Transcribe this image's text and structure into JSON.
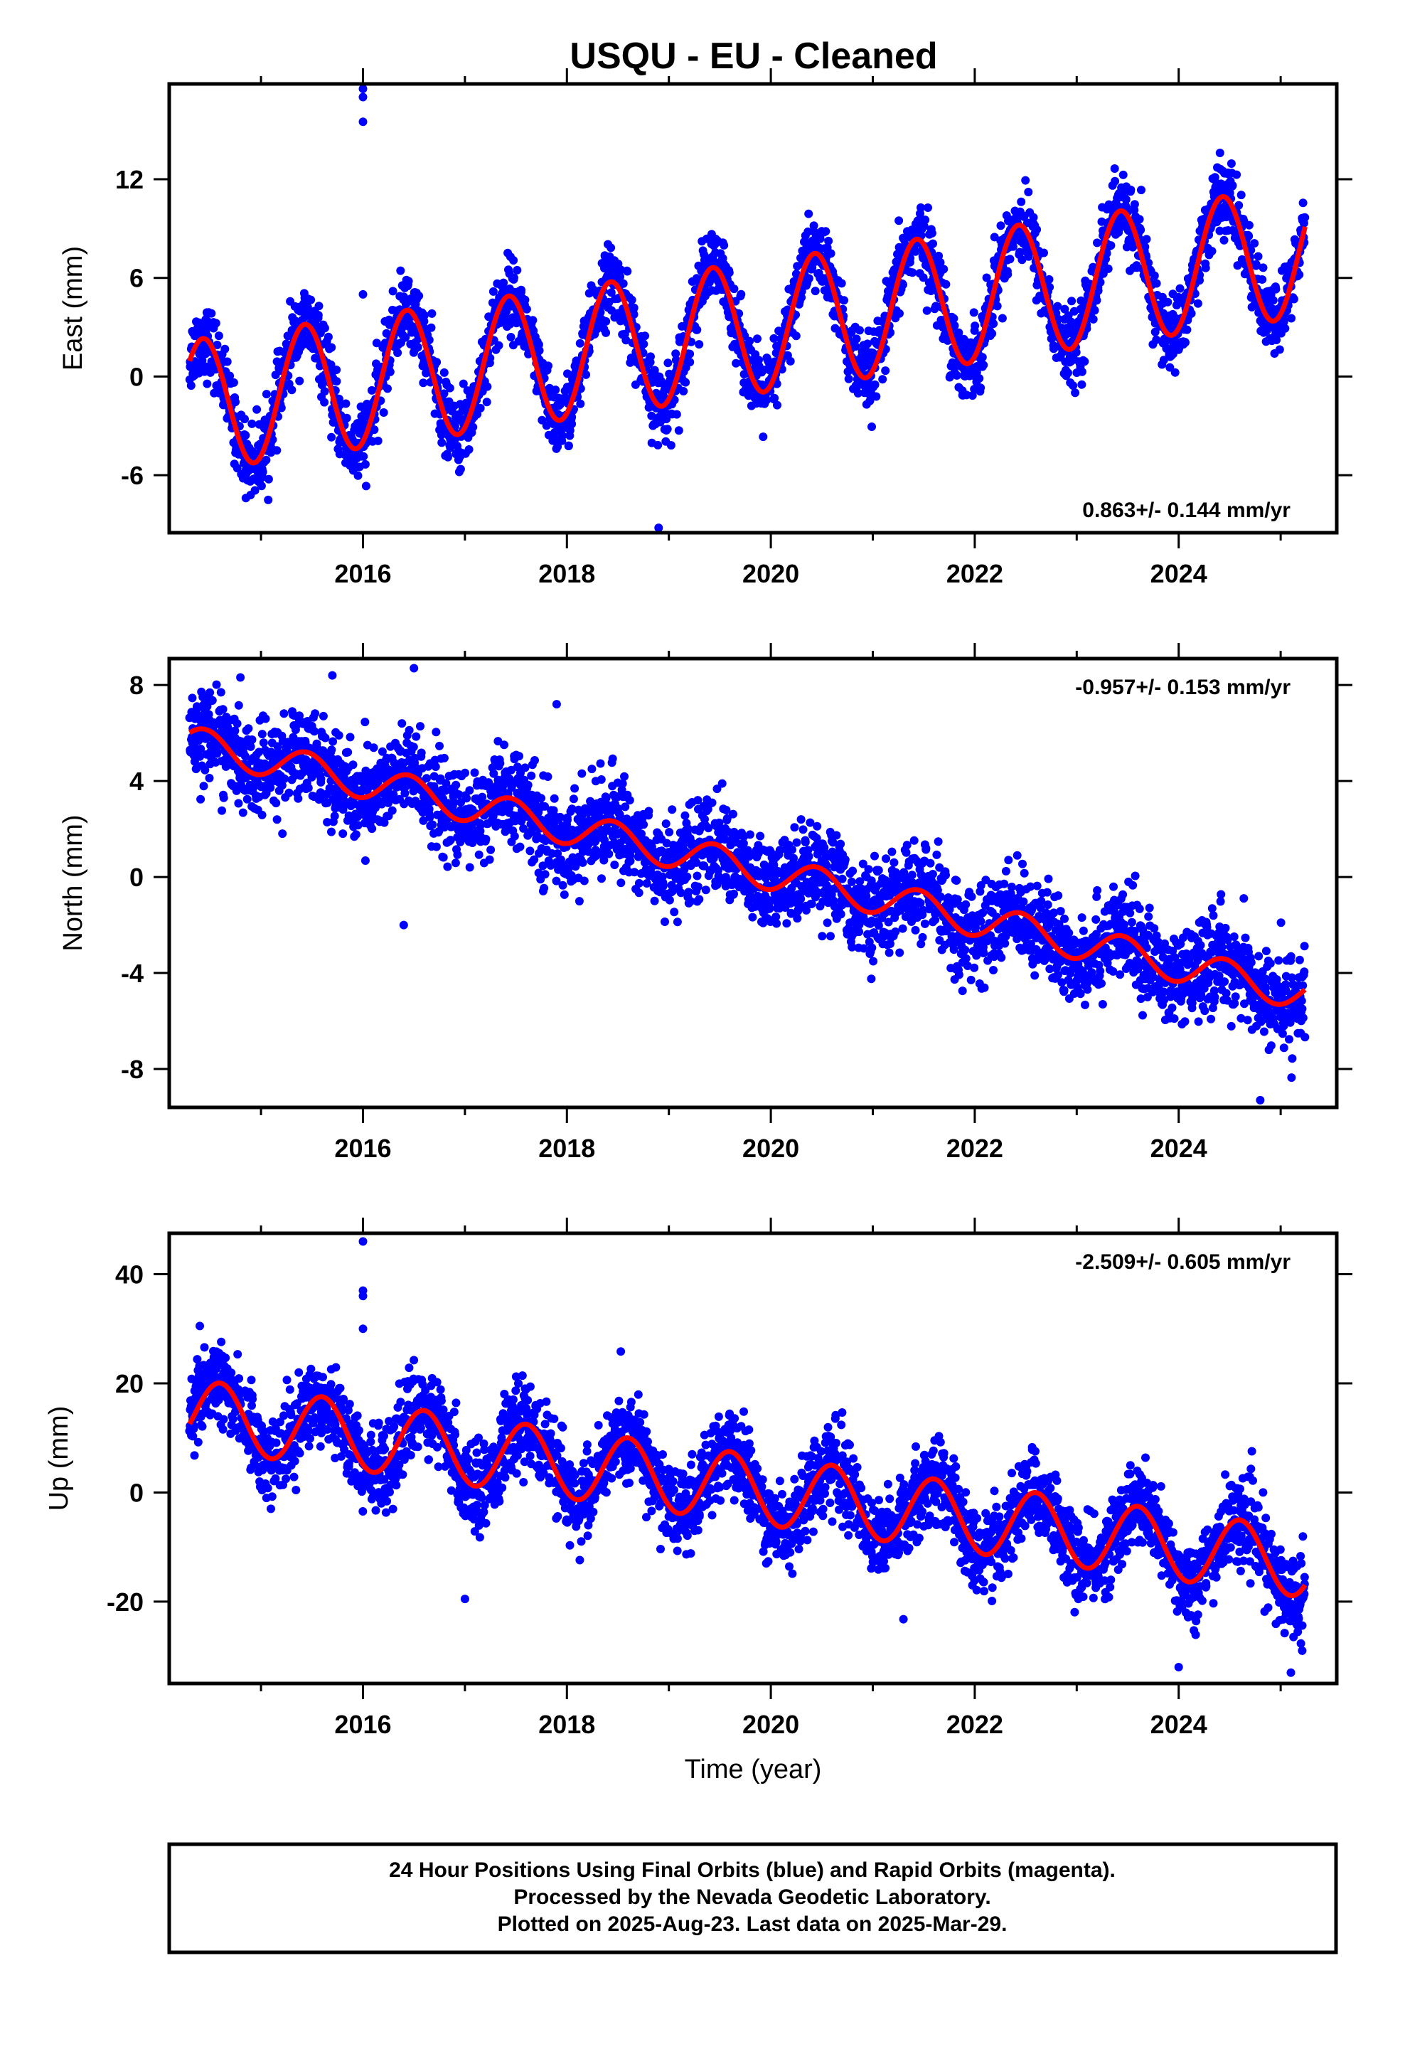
{
  "title": "USQU  - EU - Cleaned",
  "chart_data": [
    {
      "type": "scatter",
      "panel": "east",
      "ylabel": "East (mm)",
      "xlabel": "",
      "xlim": [
        2014.1,
        2025.55
      ],
      "ylim": [
        -9.5,
        17.8
      ],
      "yticks": [
        "12",
        "6",
        "0",
        "-6"
      ],
      "ytick_values": [
        12,
        6,
        0,
        -6
      ],
      "xticks": [
        "2016",
        "2018",
        "2020",
        "2022",
        "2024"
      ],
      "xtick_values": [
        2016,
        2018,
        2020,
        2022,
        2024
      ],
      "rate_label": "0.863+/- 0.144 mm/yr",
      "rate_position": "bottom-right",
      "model": {
        "start_value": -1.8,
        "trend": 0.863,
        "amplitude": 4.0,
        "peak_phase": 0.43
      },
      "scatter_sd": 1.1,
      "outliers": [
        [
          2016.0,
          17.5
        ],
        [
          2016.0,
          17.0
        ],
        [
          2016.0,
          15.5
        ],
        [
          2016.0,
          5.0
        ],
        [
          2018.9,
          -9.2
        ]
      ],
      "series": [
        {
          "role": "points",
          "color": "#0000ff"
        },
        {
          "role": "fit",
          "color": "#ff0000"
        }
      ]
    },
    {
      "type": "scatter",
      "panel": "north",
      "ylabel": "North (mm)",
      "xlabel": "",
      "xlim": [
        2014.1,
        2025.55
      ],
      "ylim": [
        -9.6,
        9.1
      ],
      "yticks": [
        "8",
        "4",
        "0",
        "-4",
        "-8"
      ],
      "ytick_values": [
        8,
        4,
        0,
        -4,
        -8
      ],
      "xticks": [
        "2016",
        "2018",
        "2020",
        "2022",
        "2024"
      ],
      "xtick_values": [
        2016,
        2018,
        2020,
        2022,
        2024
      ],
      "rate_label": "-0.957+/- 0.153 mm/yr",
      "rate_position": "top-right",
      "model": {
        "start_value": 5.6,
        "trend": -0.957,
        "amplitude": 0.7,
        "peak_phase": 0.45
      },
      "scatter_sd": 0.95,
      "outliers": [
        [
          2015.7,
          8.4
        ],
        [
          2016.5,
          8.7
        ],
        [
          2016.4,
          -2.0
        ],
        [
          2017.9,
          7.2
        ],
        [
          2024.8,
          -9.3
        ]
      ],
      "series": [
        {
          "role": "points",
          "color": "#0000ff"
        },
        {
          "role": "fit",
          "color": "#ff0000"
        }
      ]
    },
    {
      "type": "scatter",
      "panel": "up",
      "ylabel": "Up (mm)",
      "xlabel": "Time (year)",
      "xlim": [
        2014.1,
        2025.55
      ],
      "ylim": [
        -35,
        47.5
      ],
      "yticks": [
        "40",
        "20",
        "0",
        "-20"
      ],
      "ytick_values": [
        40,
        20,
        0,
        -20
      ],
      "xticks": [
        "2016",
        "2018",
        "2020",
        "2022",
        "2024"
      ],
      "xtick_values": [
        2016,
        2018,
        2020,
        2022,
        2024
      ],
      "rate_label": "-2.509+/- 0.605 mm/yr",
      "rate_position": "top-right",
      "model": {
        "start_value": 14.5,
        "trend": -2.509,
        "amplitude": 6.3,
        "peak_phase": 0.6
      },
      "scatter_sd": 3.8,
      "outliers": [
        [
          2016.0,
          46.0
        ],
        [
          2016.0,
          37.0
        ],
        [
          2016.0,
          36.0
        ],
        [
          2016.0,
          30.0
        ],
        [
          2014.4,
          30.5
        ],
        [
          2017.0,
          -19.5
        ],
        [
          2024.0,
          -32.0
        ],
        [
          2025.1,
          -33.0
        ]
      ],
      "series": [
        {
          "role": "points",
          "color": "#0000ff"
        },
        {
          "role": "fit",
          "color": "#ff0000"
        }
      ]
    }
  ],
  "info_box": {
    "line1": "24 Hour Positions Using Final Orbits (blue) and Rapid Orbits (magenta).",
    "line2": "Processed by the Nevada Geodetic Laboratory.",
    "line3": "Plotted on 2025-Aug-23. Last data on 2025-Mar-29."
  }
}
